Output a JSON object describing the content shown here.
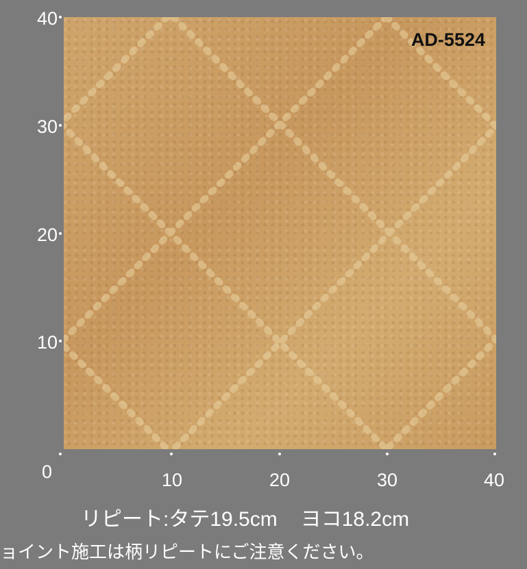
{
  "sample": {
    "code": "AD-5524",
    "color": "#cb9f63",
    "pattern_color": "#e8cf9c"
  },
  "axis": {
    "y_ticks": [
      "40",
      "30",
      "20",
      "10",
      "0"
    ],
    "x_ticks": [
      "10",
      "20",
      "30",
      "40"
    ]
  },
  "repeat": {
    "vertical": "リピート:タテ19.5cm",
    "horizontal": "ヨコ18.2cm"
  },
  "note": "ョイント施工は柄リピートにご注意ください。"
}
